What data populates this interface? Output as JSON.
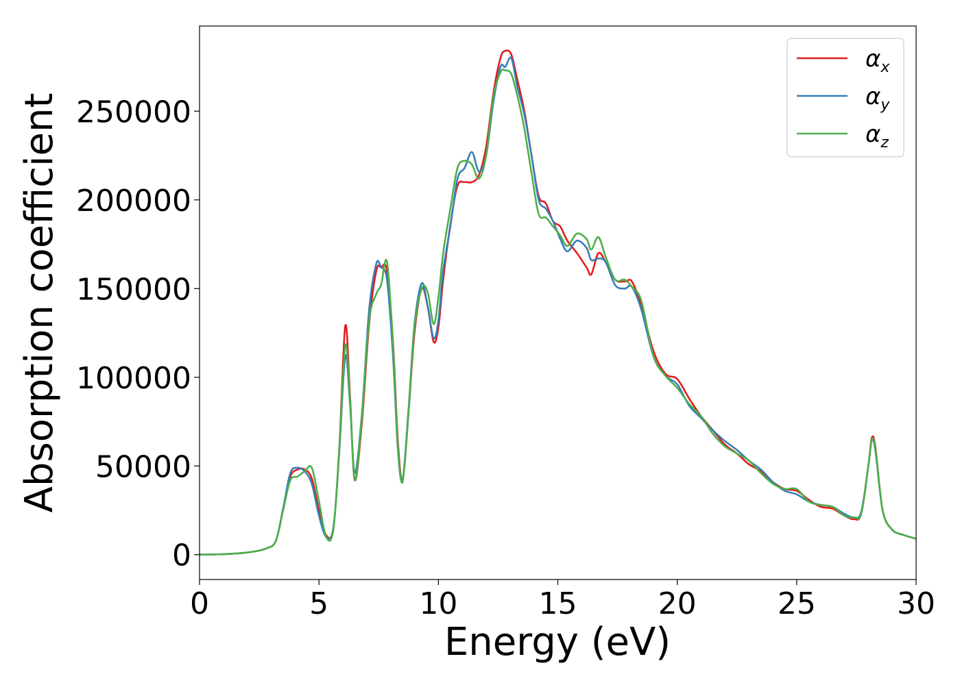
{
  "chart_data": {
    "type": "line",
    "xlabel": "Energy (eV)",
    "ylabel": "Absorption coefficient",
    "xlim": [
      0,
      30
    ],
    "ylim": [
      -14000,
      298000
    ],
    "xticks": [
      0,
      5,
      10,
      15,
      20,
      25,
      30
    ],
    "yticks": [
      0,
      50000,
      100000,
      150000,
      200000,
      250000
    ],
    "xtick_labels": [
      "0",
      "5",
      "10",
      "15",
      "20",
      "25",
      "30"
    ],
    "ytick_labels": [
      "0",
      "50000",
      "100000",
      "150000",
      "200000",
      "250000"
    ],
    "grid": false,
    "legend_position": "top-right",
    "series": [
      {
        "name": "α_x",
        "label_base": "α",
        "label_sub": "x",
        "color": "#e41a1c",
        "x": [
          0,
          1,
          2,
          2.8,
          3.2,
          3.5,
          3.8,
          4.1,
          4.4,
          4.7,
          5.0,
          5.3,
          5.6,
          5.85,
          6.1,
          6.3,
          6.5,
          6.8,
          7.1,
          7.4,
          7.6,
          7.85,
          8.1,
          8.3,
          8.5,
          8.75,
          9.0,
          9.3,
          9.55,
          9.8,
          10.0,
          10.2,
          10.5,
          10.8,
          11.1,
          11.4,
          11.7,
          12.0,
          12.3,
          12.6,
          12.8,
          13.05,
          13.3,
          13.6,
          13.9,
          14.2,
          14.5,
          14.8,
          15.1,
          15.4,
          15.8,
          16.2,
          16.4,
          16.7,
          17.0,
          17.4,
          17.8,
          18.1,
          18.5,
          19.0,
          19.5,
          20.0,
          20.5,
          21.0,
          21.5,
          22.0,
          22.5,
          23.0,
          23.5,
          24.0,
          24.5,
          25.0,
          25.5,
          26.0,
          26.5,
          27.0,
          27.4,
          27.7,
          28.0,
          28.15,
          28.3,
          28.6,
          29.0,
          29.5,
          30.0
        ],
        "y": [
          0,
          300,
          1200,
          3500,
          8000,
          26000,
          44000,
          48000,
          48000,
          43000,
          25000,
          11000,
          15000,
          60000,
          129000,
          90000,
          42000,
          75000,
          130000,
          160000,
          162000,
          160000,
          120000,
          65000,
          42000,
          80000,
          125000,
          150000,
          140000,
          120000,
          128000,
          155000,
          186000,
          208000,
          210000,
          210000,
          214000,
          230000,
          260000,
          280000,
          284000,
          282000,
          268000,
          250000,
          225000,
          202000,
          198000,
          188000,
          185000,
          177000,
          170000,
          162000,
          158000,
          170000,
          165000,
          155000,
          154000,
          154000,
          140000,
          115000,
          102000,
          99000,
          88000,
          78000,
          70000,
          62000,
          57000,
          51000,
          47000,
          41000,
          37000,
          36000,
          31000,
          27000,
          26000,
          22000,
          20000,
          23000,
          50000,
          66000,
          60000,
          25000,
          14000,
          11000,
          9000
        ]
      },
      {
        "name": "α_y",
        "label_base": "α",
        "label_sub": "y",
        "color": "#377eb8",
        "x": [
          0,
          1,
          2,
          2.8,
          3.2,
          3.5,
          3.8,
          4.1,
          4.4,
          4.7,
          5.0,
          5.3,
          5.6,
          5.85,
          6.1,
          6.3,
          6.5,
          6.8,
          7.1,
          7.4,
          7.6,
          7.85,
          8.1,
          8.3,
          8.5,
          8.75,
          9.0,
          9.3,
          9.55,
          9.8,
          10.0,
          10.2,
          10.5,
          10.8,
          11.1,
          11.4,
          11.7,
          12.0,
          12.3,
          12.6,
          12.8,
          13.05,
          13.3,
          13.6,
          13.9,
          14.2,
          14.5,
          14.8,
          15.1,
          15.4,
          15.8,
          16.2,
          16.4,
          16.7,
          17.0,
          17.4,
          17.8,
          18.1,
          18.5,
          19.0,
          19.5,
          20.0,
          20.5,
          21.0,
          21.5,
          22.0,
          22.5,
          23.0,
          23.5,
          24.0,
          24.5,
          25.0,
          25.5,
          26.0,
          26.5,
          27.0,
          27.4,
          27.7,
          28.0,
          28.15,
          28.3,
          28.6,
          29.0,
          29.5,
          30.0
        ],
        "y": [
          0,
          300,
          1200,
          3500,
          8000,
          26000,
          46000,
          49000,
          47000,
          40000,
          22000,
          10000,
          15000,
          58000,
          112000,
          85000,
          46000,
          80000,
          138000,
          164000,
          162000,
          155000,
          112000,
          60000,
          42000,
          82000,
          130000,
          153000,
          140000,
          122000,
          132000,
          160000,
          185000,
          212000,
          218000,
          227000,
          216000,
          225000,
          255000,
          275000,
          275000,
          280000,
          264000,
          248000,
          225000,
          200000,
          195000,
          188000,
          178000,
          171000,
          177000,
          173000,
          166000,
          167000,
          165000,
          152000,
          150000,
          151000,
          138000,
          112000,
          101000,
          96000,
          84000,
          77000,
          70000,
          64000,
          59000,
          53000,
          48000,
          41000,
          36000,
          34000,
          30000,
          28000,
          27000,
          23000,
          21000,
          24000,
          50000,
          65000,
          58000,
          25000,
          14000,
          11000,
          9000
        ]
      },
      {
        "name": "α_z",
        "label_base": "α",
        "label_sub": "z",
        "color": "#4daf4a",
        "x": [
          0,
          1,
          2,
          2.8,
          3.2,
          3.5,
          3.8,
          4.1,
          4.4,
          4.7,
          5.0,
          5.3,
          5.6,
          5.85,
          6.1,
          6.3,
          6.5,
          6.8,
          7.1,
          7.4,
          7.6,
          7.85,
          8.1,
          8.3,
          8.5,
          8.75,
          9.0,
          9.3,
          9.55,
          9.8,
          10.0,
          10.2,
          10.5,
          10.8,
          11.1,
          11.4,
          11.7,
          12.0,
          12.3,
          12.6,
          12.8,
          13.05,
          13.3,
          13.6,
          13.9,
          14.2,
          14.5,
          14.8,
          15.1,
          15.4,
          15.8,
          16.2,
          16.4,
          16.7,
          17.0,
          17.4,
          17.8,
          18.1,
          18.5,
          19.0,
          19.5,
          20.0,
          20.5,
          21.0,
          21.5,
          22.0,
          22.5,
          23.0,
          23.5,
          24.0,
          24.5,
          25.0,
          25.5,
          26.0,
          26.5,
          27.0,
          27.4,
          27.7,
          28.0,
          28.15,
          28.3,
          28.6,
          29.0,
          29.5,
          30.0
        ],
        "y": [
          0,
          300,
          1200,
          3500,
          8000,
          25000,
          42000,
          44000,
          47000,
          49000,
          30000,
          10000,
          14000,
          60000,
          118000,
          88000,
          42000,
          78000,
          132000,
          147000,
          152000,
          165000,
          118000,
          62000,
          41000,
          80000,
          128000,
          150000,
          148000,
          130000,
          145000,
          170000,
          195000,
          218000,
          222000,
          220000,
          212000,
          225000,
          258000,
          272000,
          273000,
          271000,
          259000,
          240000,
          215000,
          192000,
          190000,
          185000,
          180000,
          174000,
          181000,
          178000,
          172000,
          179000,
          168000,
          155000,
          155000,
          151000,
          143000,
          112000,
          101000,
          94000,
          85000,
          78000,
          68000,
          61000,
          57000,
          53000,
          46000,
          40000,
          37000,
          37000,
          30000,
          28000,
          27000,
          22000,
          21000,
          23000,
          50000,
          65000,
          59000,
          25000,
          14000,
          11000,
          9000
        ]
      }
    ]
  }
}
